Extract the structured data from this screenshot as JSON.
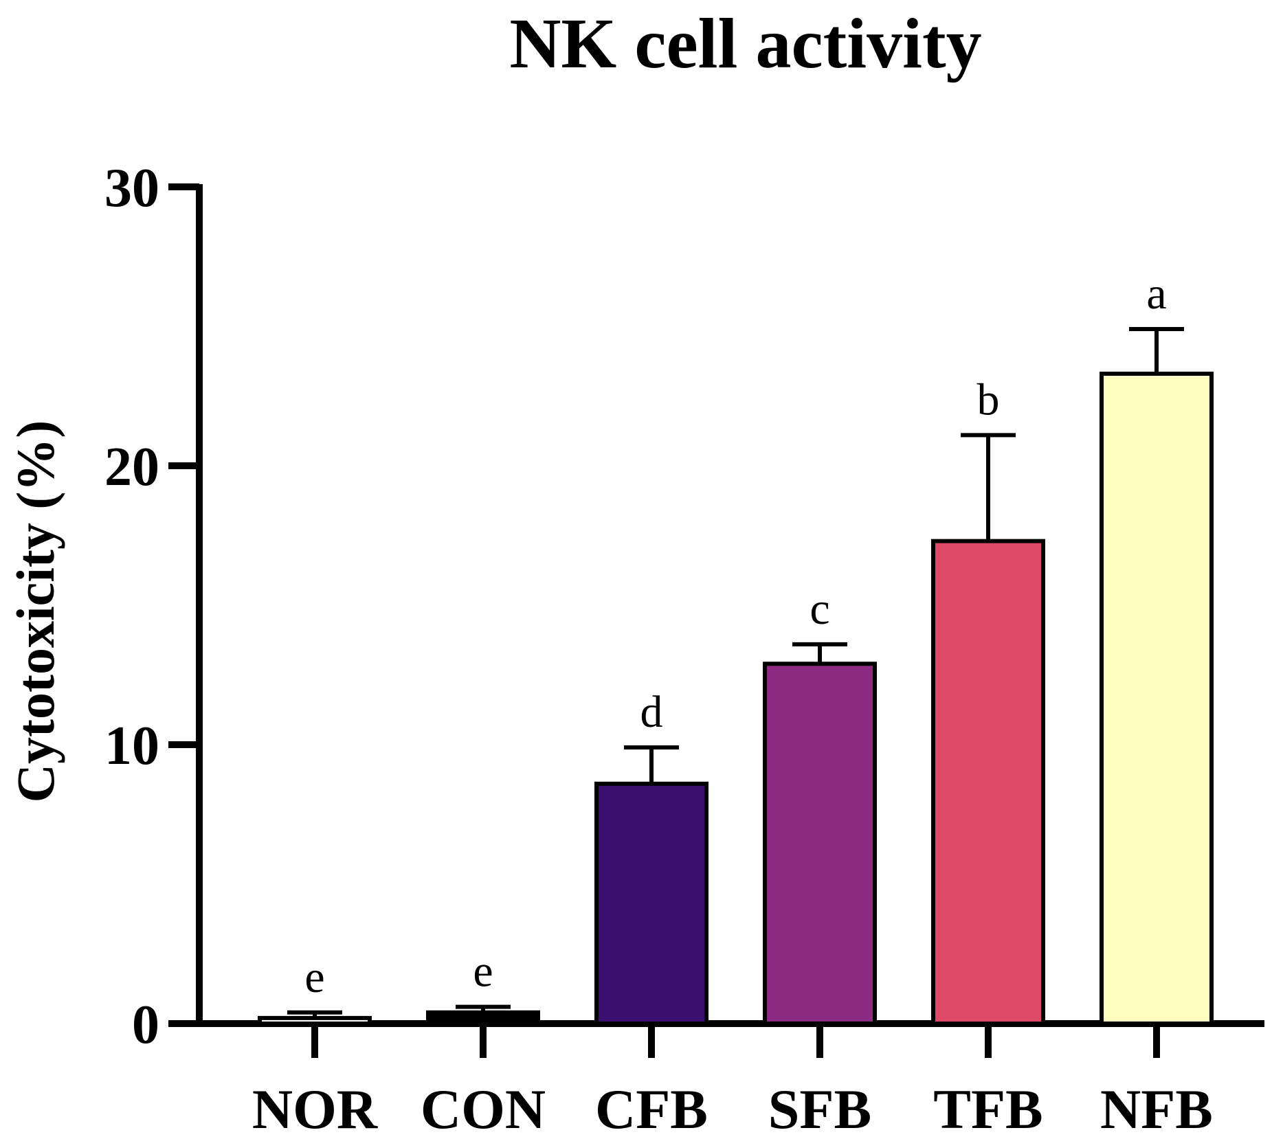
{
  "chart_data": {
    "type": "bar",
    "title": "NK cell activity",
    "xlabel": "",
    "ylabel": "Cytotoxicity (%)",
    "ylim": [
      0,
      30
    ],
    "yticks": [
      0,
      10,
      20,
      30
    ],
    "ytick_labels": [
      "0",
      "10",
      "20",
      "30"
    ],
    "categories": [
      "NOR",
      "CON",
      "CFB",
      "SFB",
      "TFB",
      "NFB"
    ],
    "values": [
      0.2,
      0.4,
      8.6,
      12.9,
      17.3,
      23.3
    ],
    "errors": [
      0.2,
      0.2,
      1.3,
      0.7,
      3.8,
      1.6
    ],
    "significance": [
      "e",
      "e",
      "d",
      "c",
      "b",
      "a"
    ],
    "colors": [
      "#ffffff",
      "#000000",
      "#3b0f6f",
      "#8c2981",
      "#de4968",
      "#fcfdbf"
    ]
  }
}
